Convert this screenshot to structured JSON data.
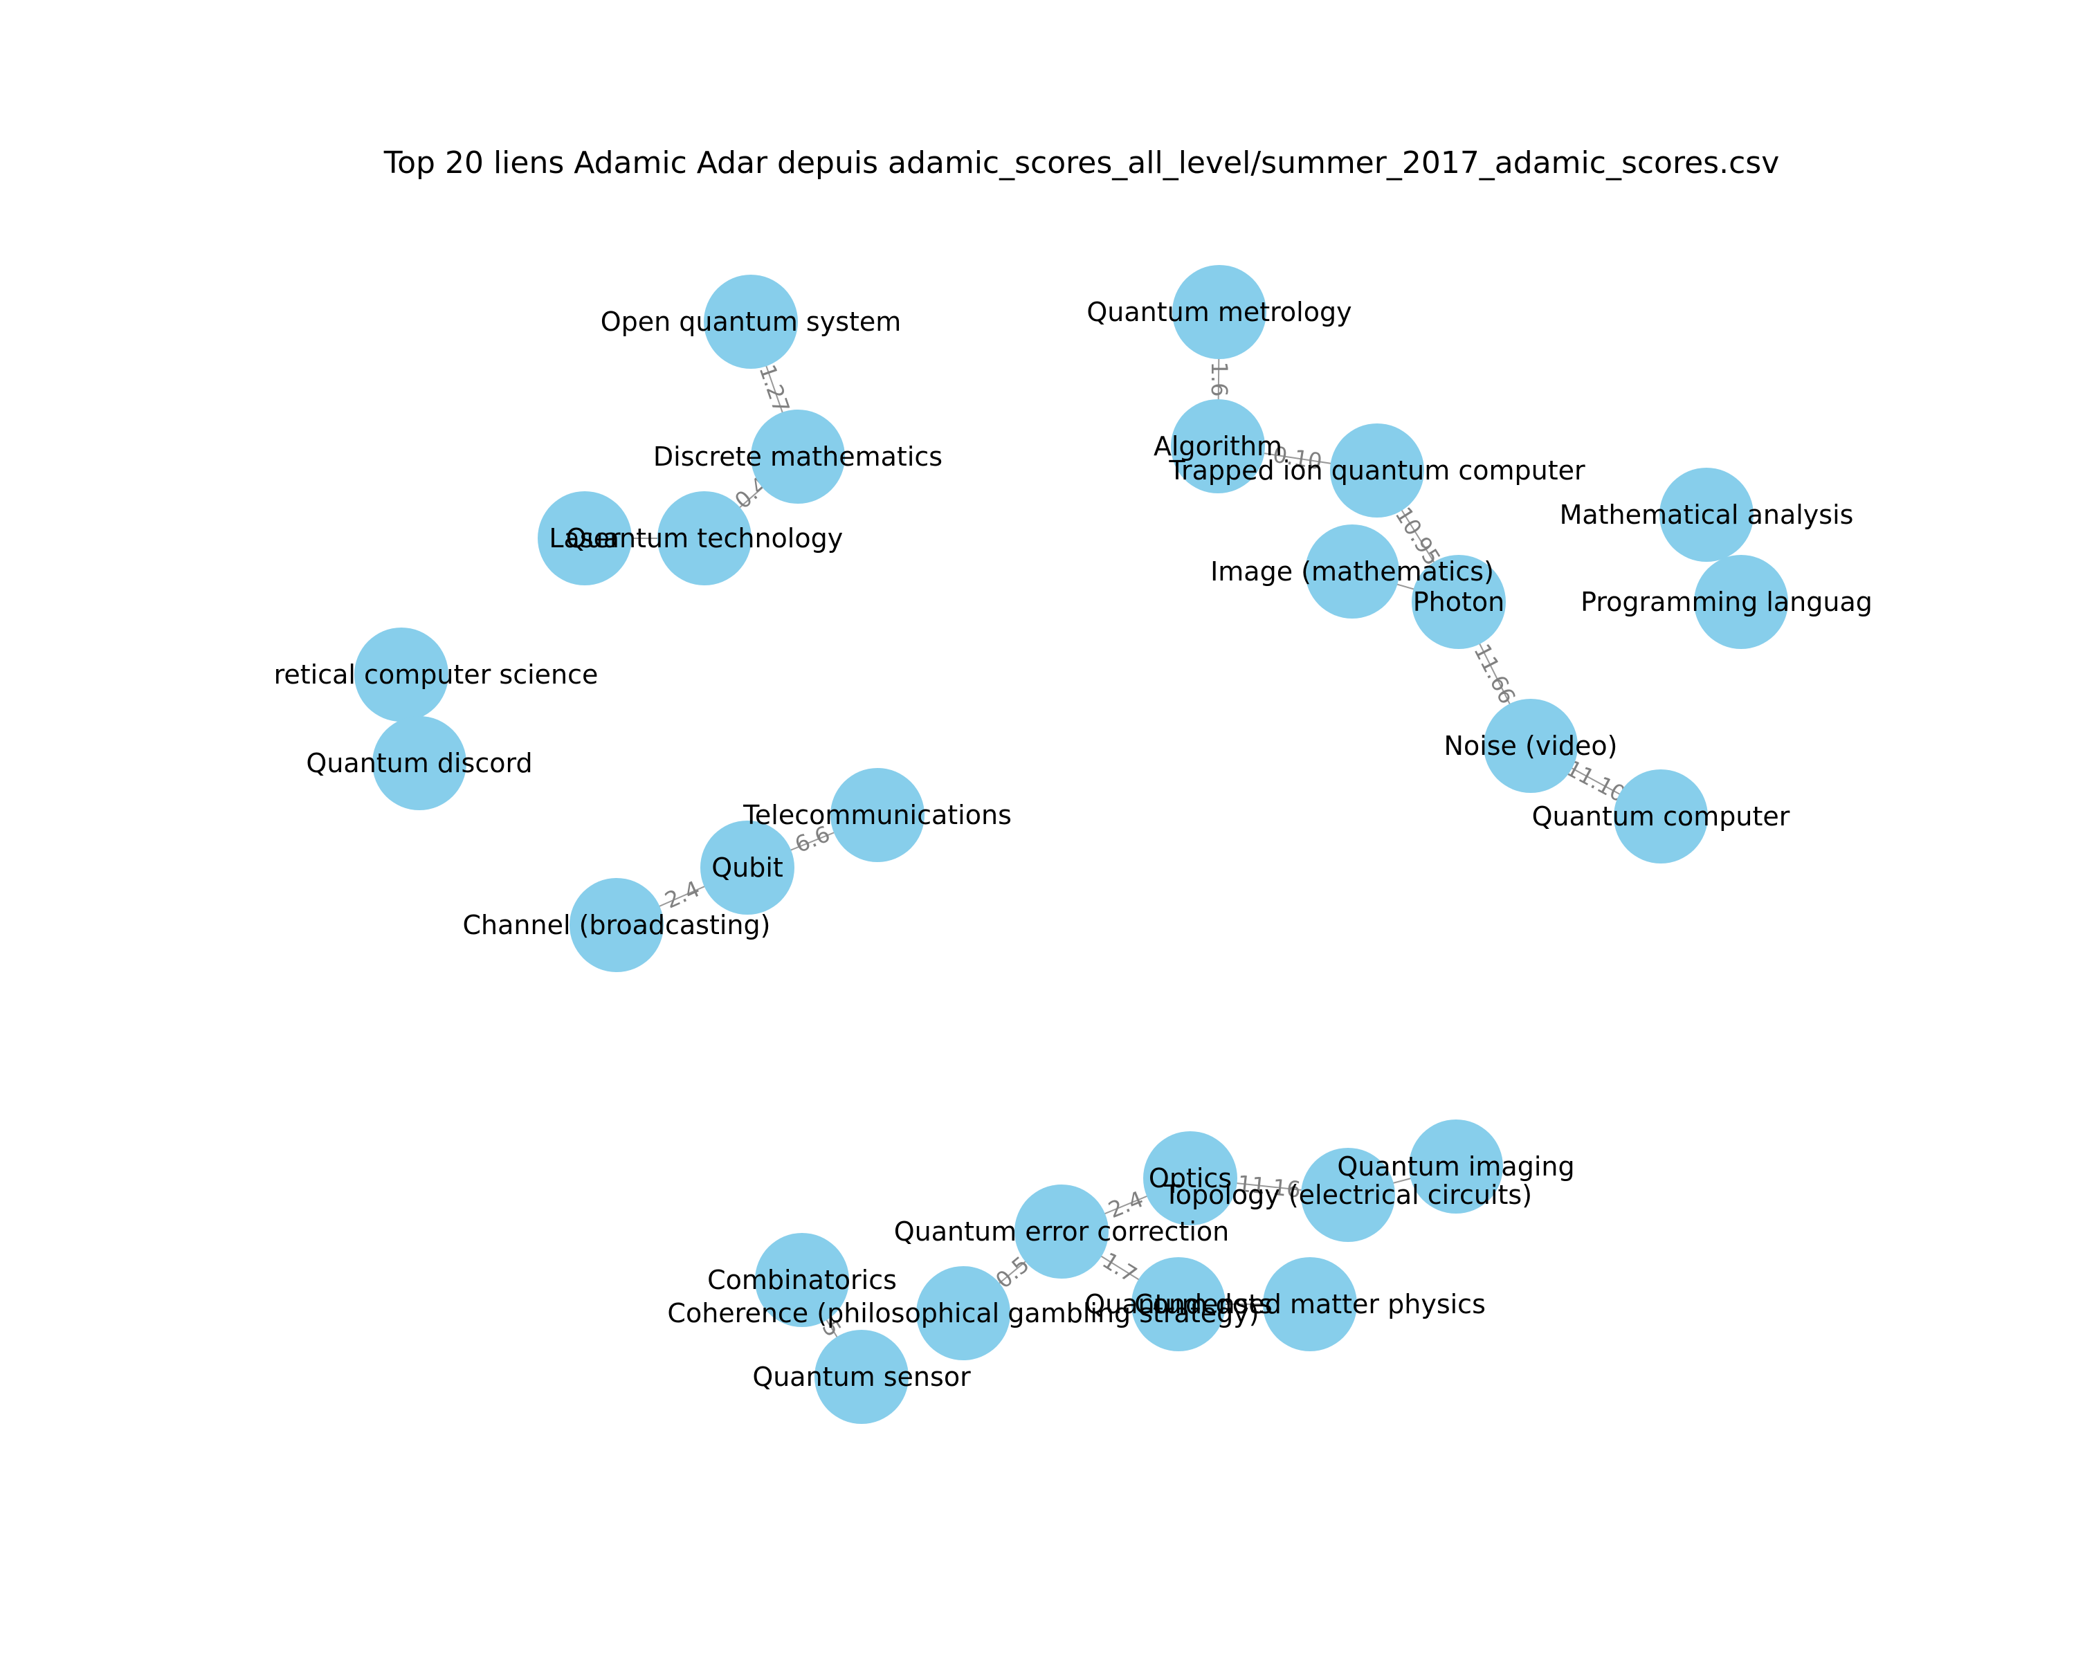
{
  "title": "Top 20 liens Adamic Adar depuis adamic_scores_all_level/summer_2017_adamic_scores.csv",
  "nodes": {
    "open_quantum_system": "Open quantum system",
    "discrete_mathematics": "Discrete mathematics",
    "laser": "Laser",
    "quantum_technology": "Quantum technology",
    "theoretical_cs": "retical computer science",
    "quantum_discord": "Quantum discord",
    "telecommunications": "Telecommunications",
    "qubit": "Qubit",
    "channel_broadcasting": "Channel (broadcasting)",
    "quantum_metrology": "Quantum metrology",
    "algorithm": "Algorithm",
    "trapped_ion": "Trapped ion quantum computer",
    "image_mathematics": "Image (mathematics)",
    "photon": "Photon",
    "noise_video": "Noise (video)",
    "quantum_computer": "Quantum computer",
    "mathematical_analysis": "Mathematical analysis",
    "programming_language": "Programming languag",
    "optics": "Optics",
    "topology_circuits": "Topology (electrical circuits)",
    "quantum_imaging": "Quantum imaging",
    "quantum_error_correction": "Quantum error correction",
    "combinatorics": "Combinatorics",
    "coherence": "Coherence (philosophical gambling strategy)",
    "quantum_sensor": "Quantum sensor",
    "quantum_dots": "Quantum dots",
    "condensed_matter": "Condensed matter physics"
  },
  "edge_labels": {
    "oqs_dm": "1.27",
    "dm_qt": "0.4",
    "qubit_tel": "6.6",
    "qubit_chan": "2.4",
    "qm_alg": "1.6",
    "alg_ti": "0.10",
    "ti_photon": "10.95",
    "photon_noise": "11.66",
    "noise_qc": "11.10",
    "qec_optics": "2.4",
    "optics_top": "11.16",
    "qec_coh": "0.5",
    "qec_qdots": "1.7",
    "comb_sensor": "5"
  }
}
